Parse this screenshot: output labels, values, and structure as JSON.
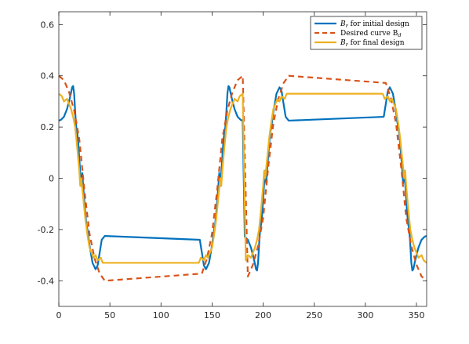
{
  "chart_data": {
    "type": "line",
    "title": "",
    "xlabel": "",
    "ylabel": "",
    "xlim": [
      0,
      360
    ],
    "ylim": [
      -0.5,
      0.65
    ],
    "xticks": [
      0,
      50,
      100,
      150,
      200,
      250,
      300,
      350
    ],
    "xtick_labels": [
      "0",
      "50",
      "100",
      "150",
      "200",
      "250",
      "300",
      "350"
    ],
    "yticks": [
      -0.4,
      -0.2,
      0,
      0.2,
      0.4,
      0.6
    ],
    "ytick_labels": [
      "-0.4",
      "-0.2",
      "0",
      "0.2",
      "0.4",
      "0.6"
    ],
    "grid": false,
    "legend_position": "top-right",
    "period_deg": 90,
    "series": [
      {
        "name": "B_r for initial design",
        "legend_label": {
          "base": "B",
          "sub": "r",
          "rest": " for initial design"
        },
        "color": "#0072BD",
        "dash": "solid",
        "x": [
          0,
          2,
          5,
          8,
          10,
          12,
          13,
          14,
          15,
          16,
          17,
          18,
          19,
          20,
          21,
          22,
          23,
          24,
          25,
          26,
          27,
          28,
          30,
          33,
          36,
          38,
          40,
          42,
          45
        ],
        "y": [
          0.225,
          0.228,
          0.24,
          0.27,
          0.3,
          0.335,
          0.355,
          0.36,
          0.33,
          0.26,
          0.2,
          0.18,
          0.14,
          0.08,
          0.02,
          -0.03,
          0.02,
          -0.04,
          -0.09,
          -0.14,
          -0.18,
          -0.2,
          -0.26,
          -0.33,
          -0.355,
          -0.34,
          -0.29,
          -0.24,
          -0.225
        ]
      },
      {
        "name": "Desired curve B_d",
        "legend_label": {
          "base": "Desired curve B",
          "sub": "d",
          "rest": ""
        },
        "color": "#D95319",
        "dash": "dashed",
        "x": [
          0,
          5,
          10,
          15,
          20,
          25,
          30,
          35,
          40,
          45
        ],
        "y": [
          0.4,
          0.383,
          0.337,
          0.265,
          0.154,
          -0.045,
          -0.215,
          -0.313,
          -0.372,
          -0.4
        ]
      },
      {
        "name": "B_r for final design",
        "legend_label": {
          "base": "B",
          "sub": "r",
          "rest": " for final design"
        },
        "color": "#EDB120",
        "dash": "solid",
        "x": [
          0,
          3,
          5,
          8,
          10,
          12,
          14,
          16,
          18,
          20,
          21,
          22,
          23,
          24,
          26,
          28,
          30,
          32,
          34,
          36,
          38,
          41,
          43,
          45
        ],
        "y": [
          0.33,
          0.32,
          0.3,
          0.31,
          0.29,
          0.27,
          0.24,
          0.2,
          0.12,
          0.03,
          -0.03,
          0.0,
          -0.04,
          -0.08,
          -0.16,
          -0.22,
          -0.27,
          -0.29,
          -0.31,
          -0.3,
          -0.32,
          -0.31,
          -0.33,
          -0.33
        ]
      }
    ]
  }
}
